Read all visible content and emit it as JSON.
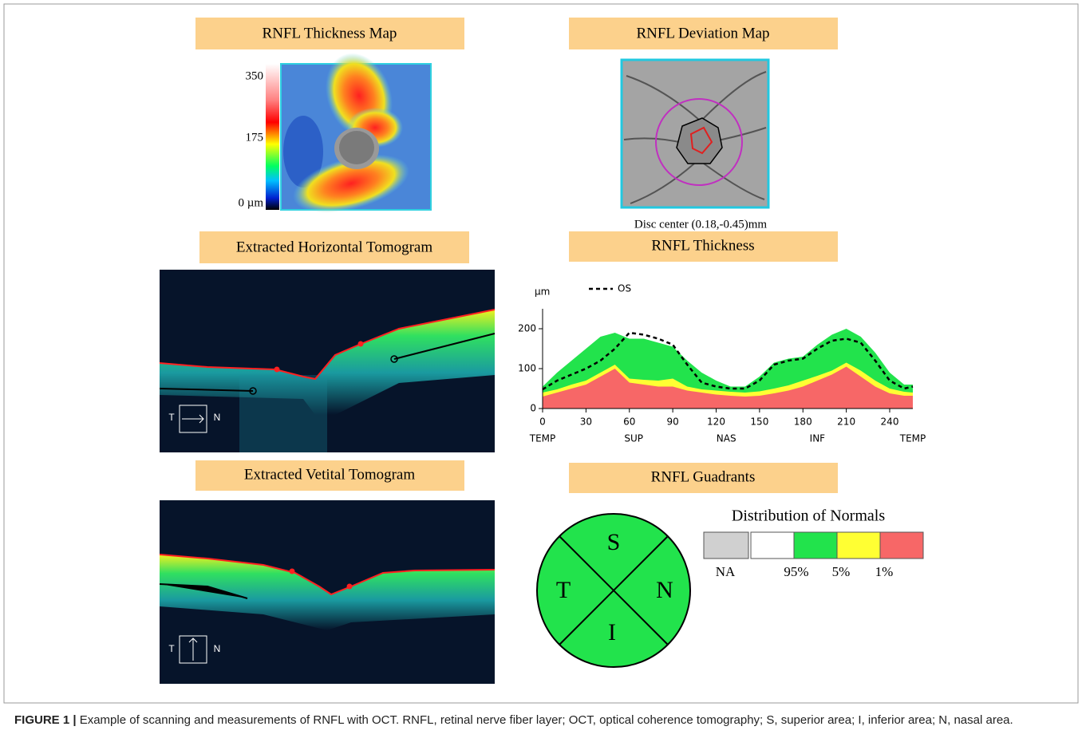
{
  "panels": {
    "thickness_map": {
      "title": "RNFL Thickness Map",
      "scale_labels": [
        "350",
        "175",
        "0 µm"
      ]
    },
    "deviation_map": {
      "title": "RNFL Deviation Map",
      "note": "Disc center (0.18,-0.45)mm"
    },
    "horizontal_tomogram": {
      "title": "Extracted Horizontal Tomogram",
      "left": "T",
      "right": "N"
    },
    "vertical_tomogram": {
      "title": "Extracted Vetital Tomogram",
      "left": "T",
      "right": "N"
    },
    "thickness_chart": {
      "title": "RNFL Thickness"
    },
    "quadrants": {
      "title": "RNFL Guadrants",
      "labels": {
        "superior": "S",
        "temporal": "T",
        "nasal": "N",
        "inferior": "I"
      },
      "legend": {
        "title": "Distribution of Normals",
        "labels": [
          "NA",
          "95%",
          "5%",
          "1%"
        ]
      }
    }
  },
  "chart_data": {
    "type": "area",
    "stacked": true,
    "y_label": "µm",
    "x": [
      0,
      10,
      20,
      30,
      40,
      50,
      60,
      70,
      80,
      90,
      100,
      110,
      120,
      130,
      140,
      150,
      160,
      170,
      180,
      190,
      200,
      210,
      220,
      230,
      240,
      250,
      256
    ],
    "series": [
      {
        "color": "#f76767",
        "values": [
          30,
          40,
          50,
          60,
          80,
          100,
          65,
          60,
          55,
          55,
          45,
          40,
          35,
          32,
          30,
          32,
          38,
          45,
          55,
          70,
          85,
          105,
          80,
          55,
          38,
          32,
          32
        ]
      },
      {
        "color": "#ffff33",
        "values": [
          10,
          8,
          10,
          10,
          10,
          10,
          10,
          12,
          15,
          20,
          10,
          8,
          10,
          10,
          10,
          11,
          12,
          13,
          15,
          12,
          10,
          10,
          15,
          15,
          12,
          10,
          8
        ]
      },
      {
        "color": "#22e34c",
        "values": [
          15,
          42,
          60,
          80,
          90,
          80,
          100,
          103,
          95,
          80,
          65,
          42,
          25,
          13,
          15,
          37,
          65,
          67,
          60,
          78,
          90,
          85,
          85,
          70,
          40,
          18,
          20
        ]
      },
      {
        "name": "OS",
        "type": "line",
        "style": "dashed",
        "color": "#000000",
        "values": [
          48,
          70,
          85,
          100,
          120,
          150,
          190,
          185,
          175,
          160,
          110,
          65,
          55,
          50,
          50,
          70,
          110,
          120,
          125,
          150,
          170,
          175,
          165,
          120,
          70,
          50,
          55
        ]
      }
    ],
    "xlim": [
      0,
      256
    ],
    "ylim": [
      0,
      250
    ],
    "xticks": [
      0,
      30,
      60,
      90,
      120,
      150,
      180,
      210,
      240
    ],
    "yticks": [
      0,
      100,
      200
    ],
    "regions": [
      {
        "value": 0,
        "label": "TEMP"
      },
      {
        "value": 63,
        "label": "SUP"
      },
      {
        "value": 127,
        "label": "NAS"
      },
      {
        "value": 190,
        "label": "INF"
      },
      {
        "value": 256,
        "label": "TEMP"
      }
    ]
  },
  "caption": {
    "label": "FIGURE 1 |",
    "text": " Example of scanning and measurements of RNFL with OCT. RNFL, retinal nerve fiber layer; OCT, optical coherence tomography; S, superior area; I, inferior area; N, nasal area."
  }
}
